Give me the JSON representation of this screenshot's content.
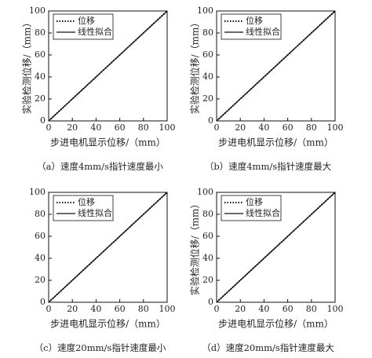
{
  "chart_data": [
    {
      "type": "line",
      "xlabel": "步进电机显示位移/（mm）",
      "ylabel": "实验检测位移/（mm）",
      "caption": "（a）速度4mm/s指针速度最小",
      "x": [
        0,
        20,
        40,
        60,
        80,
        100
      ],
      "series": [
        {
          "name": "位移",
          "color": "#111",
          "style": "dotted",
          "values": [
            0,
            20,
            40,
            60,
            80,
            100
          ]
        },
        {
          "name": "线性拟合",
          "color": "#111",
          "style": "solid",
          "values": [
            0,
            20,
            40,
            60,
            80,
            100
          ]
        }
      ],
      "xlim": [
        0,
        100
      ],
      "ylim": [
        0,
        100
      ],
      "xticks": [
        0,
        20,
        40,
        60,
        80,
        100
      ],
      "yticks": [
        0,
        20,
        40,
        60,
        80,
        100
      ],
      "legend": "upper left"
    },
    {
      "type": "line",
      "xlabel": "步进电机显示位移/（mm）",
      "ylabel": "实验检测位移/（mm）",
      "caption": "（b）速度4mm/s指针速度最大",
      "x": [
        0,
        20,
        40,
        60,
        80,
        100
      ],
      "series": [
        {
          "name": "位移",
          "color": "#111",
          "style": "dotted",
          "values": [
            0,
            20,
            40,
            60,
            80,
            100
          ]
        },
        {
          "name": "线性拟合",
          "color": "#111",
          "style": "solid",
          "values": [
            0,
            20,
            40,
            60,
            80,
            100
          ]
        }
      ],
      "xlim": [
        0,
        100
      ],
      "ylim": [
        0,
        100
      ],
      "xticks": [
        0,
        20,
        40,
        60,
        80,
        100
      ],
      "yticks": [
        0,
        20,
        40,
        60,
        80,
        100
      ],
      "legend": "upper left"
    },
    {
      "type": "line",
      "xlabel": "步进电机显示位移/（mm）",
      "caption": "（c）速度20mm/s指针速度最小",
      "x": [
        0,
        20,
        40,
        60,
        80,
        100
      ],
      "series": [
        {
          "name": "位移",
          "color": "#111",
          "style": "dotted",
          "values": [
            0,
            20,
            40,
            60,
            80,
            100
          ]
        },
        {
          "name": "线性拟合",
          "color": "#111",
          "style": "solid",
          "values": [
            0,
            20,
            40,
            60,
            80,
            100
          ]
        }
      ],
      "xlim": [
        0,
        100
      ],
      "ylim": [
        0,
        100
      ],
      "xticks": [
        0,
        20,
        40,
        60,
        80,
        100
      ],
      "yticks": [
        0,
        20,
        40,
        60,
        80,
        100
      ],
      "legend": "upper left"
    },
    {
      "type": "line",
      "xlabel": "步进电机显示位移/（mm）",
      "ylabel": "实验检测位移/（mm）",
      "caption": "（d）速度20mm/s指针速度最大",
      "x": [
        0,
        20,
        40,
        60,
        80,
        100
      ],
      "series": [
        {
          "name": "位移",
          "color": "#111",
          "style": "dotted",
          "values": [
            0,
            20,
            40,
            60,
            80,
            100
          ]
        },
        {
          "name": "线性拟合",
          "color": "#111",
          "style": "solid",
          "values": [
            0,
            20,
            40,
            60,
            80,
            100
          ]
        }
      ],
      "xlim": [
        0,
        100
      ],
      "ylim": [
        0,
        100
      ],
      "xticks": [
        0,
        20,
        40,
        60,
        80,
        100
      ],
      "yticks": [
        0,
        20,
        40,
        60,
        80,
        100
      ],
      "legend": "upper left"
    }
  ]
}
